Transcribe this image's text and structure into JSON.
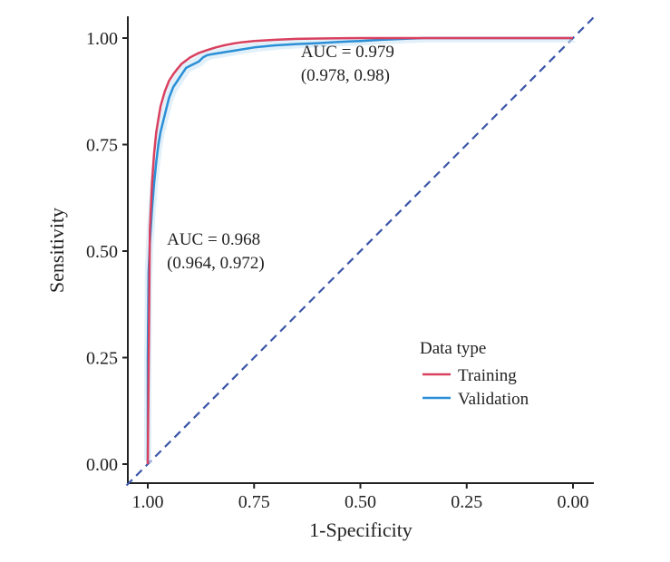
{
  "chart_data": {
    "type": "line",
    "title": "",
    "xlabel": "1-Specificity",
    "ylabel": "Sensitivity",
    "x_reversed": true,
    "xlim": [
      1.0,
      0.0
    ],
    "ylim": [
      0.0,
      1.0
    ],
    "x_ticks": [
      "1.00",
      "0.75",
      "0.50",
      "0.25",
      "0.00"
    ],
    "x_tick_values": [
      1.0,
      0.75,
      0.5,
      0.25,
      0.0
    ],
    "y_ticks": [
      "0.00",
      "0.25",
      "0.50",
      "0.75",
      "1.00"
    ],
    "y_tick_values": [
      0.0,
      0.25,
      0.5,
      0.75,
      1.0
    ],
    "grid": false,
    "legend": {
      "title": "Data type",
      "placement": "bottom-right",
      "entries": [
        "Training",
        "Validation"
      ]
    },
    "reference_line": {
      "style": "dashed",
      "color": "#3a56a8",
      "points": [
        [
          1.0,
          0.0
        ],
        [
          0.0,
          1.0
        ]
      ]
    },
    "series": [
      {
        "name": "Training",
        "color": "#d9405f",
        "x": [
          1.0,
          0.995,
          0.99,
          0.985,
          0.98,
          0.975,
          0.97,
          0.96,
          0.95,
          0.94,
          0.93,
          0.92,
          0.9,
          0.88,
          0.86,
          0.84,
          0.82,
          0.8,
          0.78,
          0.75,
          0.7,
          0.65,
          0.6,
          0.5,
          0.4,
          0.3,
          0.2,
          0.1,
          0.0
        ],
        "y": [
          0.0,
          0.55,
          0.66,
          0.73,
          0.78,
          0.81,
          0.84,
          0.875,
          0.9,
          0.915,
          0.928,
          0.94,
          0.955,
          0.965,
          0.972,
          0.978,
          0.983,
          0.987,
          0.99,
          0.993,
          0.996,
          0.998,
          0.999,
          1.0,
          1.0,
          1.0,
          1.0,
          1.0,
          1.0
        ]
      },
      {
        "name": "Validation",
        "color": "#2a8fd6",
        "x": [
          1.0,
          1.0,
          0.998,
          0.995,
          0.99,
          0.985,
          0.98,
          0.975,
          0.97,
          0.96,
          0.95,
          0.94,
          0.93,
          0.92,
          0.91,
          0.9,
          0.88,
          0.87,
          0.86,
          0.85,
          0.83,
          0.8,
          0.75,
          0.7,
          0.65,
          0.6,
          0.55,
          0.5,
          0.45,
          0.4,
          0.35,
          0.3,
          0.2,
          0.1,
          0.0
        ],
        "y": [
          0.0,
          0.25,
          0.45,
          0.52,
          0.6,
          0.66,
          0.71,
          0.75,
          0.78,
          0.82,
          0.86,
          0.885,
          0.9,
          0.915,
          0.93,
          0.935,
          0.945,
          0.955,
          0.96,
          0.962,
          0.965,
          0.97,
          0.978,
          0.983,
          0.986,
          0.988,
          0.991,
          0.993,
          0.996,
          0.998,
          1.0,
          1.0,
          1.0,
          1.0,
          1.0
        ]
      }
    ],
    "annotations": [
      {
        "text_line1": "AUC = 0.979",
        "text_line2": "(0.978, 0.98)",
        "x": 0.64,
        "y": 0.955,
        "y2": 0.9
      },
      {
        "text_line1": "AUC = 0.968",
        "text_line2": "(0.964, 0.972)",
        "x": 0.955,
        "y": 0.515,
        "y2": 0.46
      }
    ]
  }
}
